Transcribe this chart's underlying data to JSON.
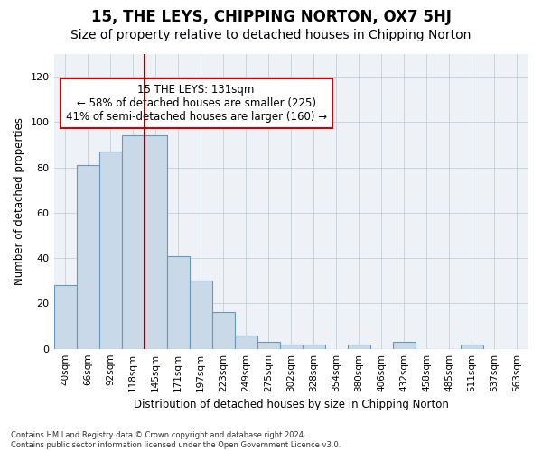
{
  "title": "15, THE LEYS, CHIPPING NORTON, OX7 5HJ",
  "subtitle": "Size of property relative to detached houses in Chipping Norton",
  "xlabel": "Distribution of detached houses by size in Chipping Norton",
  "ylabel": "Number of detached properties",
  "bar_values": [
    28,
    81,
    87,
    94,
    94,
    41,
    30,
    16,
    6,
    3,
    2,
    2,
    0,
    2,
    0,
    3,
    0,
    0,
    2,
    0,
    0
  ],
  "bar_labels": [
    "40sqm",
    "66sqm",
    "92sqm",
    "118sqm",
    "145sqm",
    "171sqm",
    "197sqm",
    "223sqm",
    "249sqm",
    "275sqm",
    "302sqm",
    "328sqm",
    "354sqm",
    "380sqm",
    "406sqm",
    "432sqm",
    "458sqm",
    "485sqm",
    "511sqm",
    "537sqm",
    "563sqm"
  ],
  "ylim": [
    0,
    130
  ],
  "yticks": [
    0,
    20,
    40,
    60,
    80,
    100,
    120
  ],
  "bar_color": "#c9d9e8",
  "bar_edge_color": "#6699bb",
  "vline_x": 3.5,
  "vline_color": "#990000",
  "annotation_text": "15 THE LEYS: 131sqm\n← 58% of detached houses are smaller (225)\n41% of semi-detached houses are larger (160) →",
  "annotation_box_color": "#ffffff",
  "annotation_box_edge": "#cc0000",
  "background_color": "#eef2f7",
  "footnote": "Contains HM Land Registry data © Crown copyright and database right 2024.\nContains public sector information licensed under the Open Government Licence v3.0.",
  "title_fontsize": 12,
  "subtitle_fontsize": 10,
  "annotation_fontsize": 8.5
}
